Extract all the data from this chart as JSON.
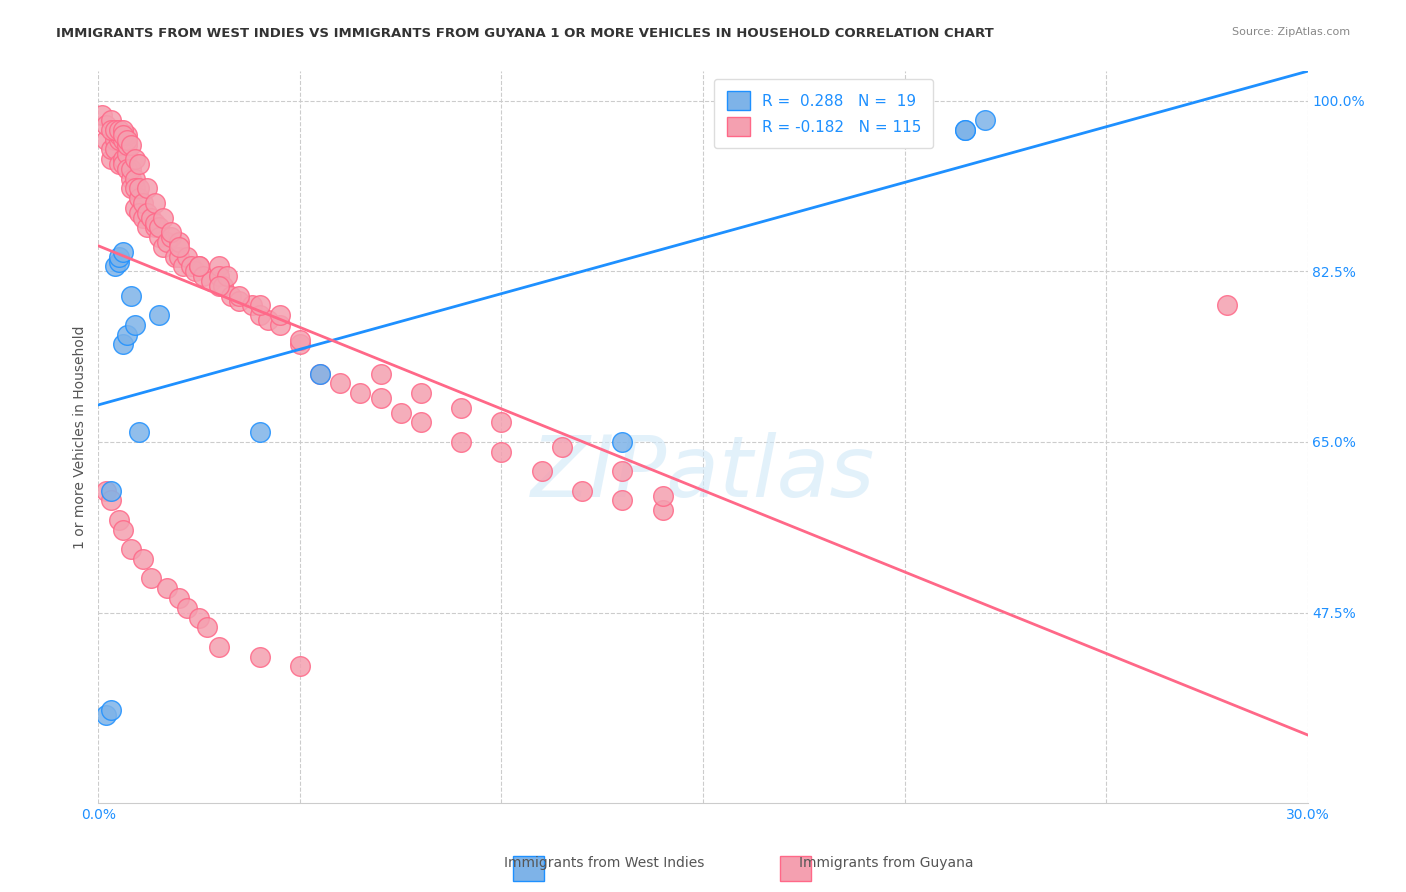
{
  "title": "IMMIGRANTS FROM WEST INDIES VS IMMIGRANTS FROM GUYANA 1 OR MORE VEHICLES IN HOUSEHOLD CORRELATION CHART",
  "source": "Source: ZipAtlas.com",
  "xlabel_bottom": "",
  "ylabel": "1 or more Vehicles in Household",
  "xmin": 0.0,
  "xmax": 0.3,
  "ymin": 0.28,
  "ymax": 1.03,
  "xticks": [
    0.0,
    0.05,
    0.1,
    0.15,
    0.2,
    0.25,
    0.3
  ],
  "xticklabels": [
    "0.0%",
    "",
    "",
    "",
    "",
    "",
    "30.0%"
  ],
  "yticks_right": [
    1.0,
    0.825,
    0.65,
    0.475
  ],
  "yticks_right_labels": [
    "100.0%",
    "82.5%",
    "65.0%",
    "47.5%"
  ],
  "blue_R": 0.288,
  "blue_N": 19,
  "pink_R": -0.182,
  "pink_N": 115,
  "blue_color": "#7EB3E8",
  "pink_color": "#F4A0B0",
  "blue_line_color": "#1E90FF",
  "pink_line_color": "#FF6888",
  "legend_blue_label": "R =  0.288   N =  19",
  "legend_pink_label": "R = -0.182   N = 115",
  "footer_blue_label": "Immigrants from West Indies",
  "footer_pink_label": "Immigrants from Guyana",
  "watermark": "ZIPatlas",
  "blue_x": [
    0.002,
    0.003,
    0.003,
    0.004,
    0.005,
    0.005,
    0.006,
    0.006,
    0.007,
    0.008,
    0.009,
    0.01,
    0.015,
    0.04,
    0.055,
    0.13,
    0.215,
    0.215,
    0.22
  ],
  "blue_y": [
    0.37,
    0.375,
    0.6,
    0.83,
    0.835,
    0.84,
    0.845,
    0.75,
    0.76,
    0.8,
    0.77,
    0.66,
    0.78,
    0.66,
    0.72,
    0.65,
    0.97,
    0.97,
    0.98
  ],
  "pink_x": [
    0.002,
    0.003,
    0.003,
    0.004,
    0.004,
    0.004,
    0.005,
    0.005,
    0.005,
    0.006,
    0.006,
    0.006,
    0.007,
    0.007,
    0.007,
    0.007,
    0.008,
    0.008,
    0.008,
    0.009,
    0.009,
    0.009,
    0.01,
    0.01,
    0.01,
    0.011,
    0.011,
    0.012,
    0.012,
    0.013,
    0.014,
    0.014,
    0.015,
    0.015,
    0.016,
    0.017,
    0.018,
    0.019,
    0.02,
    0.02,
    0.021,
    0.022,
    0.023,
    0.024,
    0.025,
    0.026,
    0.028,
    0.03,
    0.03,
    0.031,
    0.032,
    0.033,
    0.035,
    0.038,
    0.04,
    0.042,
    0.045,
    0.05,
    0.055,
    0.06,
    0.065,
    0.07,
    0.075,
    0.08,
    0.09,
    0.1,
    0.11,
    0.12,
    0.13,
    0.14,
    0.001,
    0.002,
    0.003,
    0.003,
    0.004,
    0.005,
    0.006,
    0.006,
    0.007,
    0.008,
    0.009,
    0.01,
    0.012,
    0.014,
    0.016,
    0.018,
    0.02,
    0.025,
    0.03,
    0.035,
    0.04,
    0.045,
    0.05,
    0.07,
    0.08,
    0.09,
    0.1,
    0.115,
    0.13,
    0.14,
    0.002,
    0.003,
    0.005,
    0.006,
    0.008,
    0.011,
    0.013,
    0.017,
    0.02,
    0.022,
    0.025,
    0.027,
    0.03,
    0.04,
    0.05,
    0.28
  ],
  "pink_y": [
    0.96,
    0.94,
    0.95,
    0.96,
    0.97,
    0.95,
    0.96,
    0.935,
    0.965,
    0.94,
    0.935,
    0.96,
    0.945,
    0.955,
    0.965,
    0.93,
    0.92,
    0.91,
    0.93,
    0.92,
    0.91,
    0.89,
    0.9,
    0.885,
    0.91,
    0.88,
    0.895,
    0.87,
    0.885,
    0.88,
    0.87,
    0.875,
    0.86,
    0.87,
    0.85,
    0.855,
    0.86,
    0.84,
    0.84,
    0.855,
    0.83,
    0.84,
    0.83,
    0.825,
    0.83,
    0.82,
    0.815,
    0.83,
    0.82,
    0.81,
    0.82,
    0.8,
    0.795,
    0.79,
    0.78,
    0.775,
    0.77,
    0.75,
    0.72,
    0.71,
    0.7,
    0.695,
    0.68,
    0.67,
    0.65,
    0.64,
    0.62,
    0.6,
    0.59,
    0.58,
    0.985,
    0.975,
    0.98,
    0.97,
    0.97,
    0.97,
    0.97,
    0.965,
    0.96,
    0.955,
    0.94,
    0.935,
    0.91,
    0.895,
    0.88,
    0.865,
    0.85,
    0.83,
    0.81,
    0.8,
    0.79,
    0.78,
    0.755,
    0.72,
    0.7,
    0.685,
    0.67,
    0.645,
    0.62,
    0.595,
    0.6,
    0.59,
    0.57,
    0.56,
    0.54,
    0.53,
    0.51,
    0.5,
    0.49,
    0.48,
    0.47,
    0.46,
    0.44,
    0.43,
    0.42,
    0.79
  ]
}
